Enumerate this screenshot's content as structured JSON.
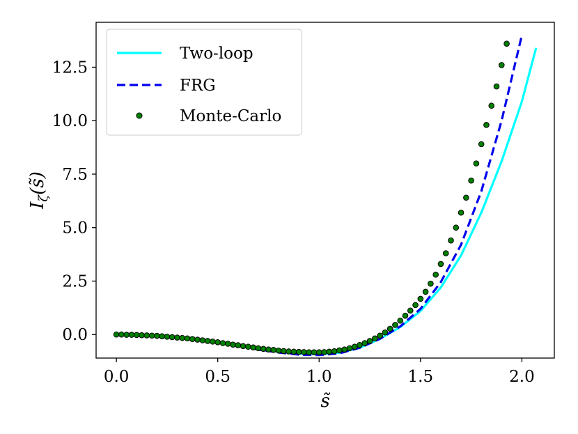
{
  "chart_data": {
    "type": "line",
    "xlabel": "s̃",
    "ylabel": "I",
    "ylabel_subscript": "ζ",
    "ylabel_arg": "(s̃)",
    "xlim": [
      -0.1,
      2.16
    ],
    "ylim": [
      -1.1,
      14.6
    ],
    "xticks": [
      0.0,
      0.5,
      1.0,
      1.5,
      2.0
    ],
    "xtick_labels": [
      "0.0",
      "0.5",
      "1.0",
      "1.5",
      "2.0"
    ],
    "yticks": [
      0.0,
      2.5,
      5.0,
      7.5,
      10.0,
      12.5
    ],
    "ytick_labels": [
      "0.0",
      "2.5",
      "5.0",
      "7.5",
      "10.0",
      "12.5"
    ],
    "grid": false,
    "legend_position": "top-left",
    "series": [
      {
        "name": "Two-loop",
        "style": "solid",
        "color": "#00ffff",
        "x": [
          0.0,
          0.1,
          0.2,
          0.3,
          0.4,
          0.5,
          0.6,
          0.7,
          0.8,
          0.9,
          1.0,
          1.1,
          1.2,
          1.3,
          1.4,
          1.5,
          1.6,
          1.7,
          1.8,
          1.9,
          2.0,
          2.07
        ],
        "y": [
          0.0,
          -0.01,
          -0.05,
          -0.12,
          -0.22,
          -0.34,
          -0.5,
          -0.66,
          -0.8,
          -0.9,
          -0.92,
          -0.85,
          -0.62,
          -0.2,
          0.35,
          1.1,
          2.2,
          3.7,
          5.7,
          8.1,
          10.9,
          13.4
        ]
      },
      {
        "name": "FRG",
        "style": "dashed",
        "color": "#0000ee",
        "x": [
          0.0,
          0.1,
          0.2,
          0.3,
          0.4,
          0.5,
          0.6,
          0.7,
          0.8,
          0.9,
          1.0,
          1.1,
          1.2,
          1.3,
          1.4,
          1.5,
          1.6,
          1.7,
          1.8,
          1.9,
          2.0
        ],
        "y": [
          0.0,
          -0.01,
          -0.05,
          -0.12,
          -0.22,
          -0.35,
          -0.52,
          -0.7,
          -0.84,
          -0.94,
          -0.96,
          -0.88,
          -0.62,
          -0.2,
          0.38,
          1.2,
          2.45,
          4.2,
          6.7,
          10.0,
          14.0
        ]
      },
      {
        "name": "Monte-Carlo",
        "style": "markers",
        "color": "#008000",
        "edge_color": "#000000",
        "x": [
          0.0,
          0.025,
          0.05,
          0.075,
          0.1,
          0.125,
          0.15,
          0.175,
          0.2,
          0.225,
          0.25,
          0.275,
          0.3,
          0.325,
          0.35,
          0.375,
          0.4,
          0.425,
          0.45,
          0.475,
          0.5,
          0.525,
          0.55,
          0.575,
          0.6,
          0.625,
          0.65,
          0.675,
          0.7,
          0.725,
          0.75,
          0.775,
          0.8,
          0.825,
          0.85,
          0.875,
          0.9,
          0.925,
          0.95,
          0.975,
          1.0,
          1.025,
          1.05,
          1.075,
          1.1,
          1.125,
          1.15,
          1.175,
          1.2,
          1.225,
          1.25,
          1.275,
          1.3,
          1.325,
          1.35,
          1.375,
          1.4,
          1.425,
          1.45,
          1.475,
          1.5,
          1.525,
          1.55,
          1.575,
          1.6,
          1.625,
          1.65,
          1.675,
          1.7,
          1.725,
          1.75,
          1.775,
          1.8,
          1.825,
          1.85,
          1.875,
          1.9,
          1.925
        ],
        "y": [
          0.0,
          0.0,
          -0.01,
          -0.01,
          -0.02,
          -0.03,
          -0.04,
          -0.05,
          -0.06,
          -0.08,
          -0.1,
          -0.12,
          -0.14,
          -0.16,
          -0.18,
          -0.21,
          -0.24,
          -0.27,
          -0.3,
          -0.33,
          -0.36,
          -0.4,
          -0.43,
          -0.47,
          -0.5,
          -0.54,
          -0.57,
          -0.6,
          -0.64,
          -0.67,
          -0.7,
          -0.72,
          -0.75,
          -0.77,
          -0.79,
          -0.8,
          -0.81,
          -0.82,
          -0.83,
          -0.83,
          -0.83,
          -0.82,
          -0.8,
          -0.78,
          -0.74,
          -0.7,
          -0.64,
          -0.57,
          -0.49,
          -0.4,
          -0.3,
          -0.18,
          -0.05,
          0.1,
          0.27,
          0.45,
          0.65,
          0.88,
          1.12,
          1.38,
          1.67,
          2.0,
          2.38,
          2.8,
          3.3,
          3.8,
          4.4,
          5.0,
          5.7,
          6.4,
          7.2,
          8.0,
          8.9,
          9.8,
          10.7,
          11.6,
          12.6,
          13.6
        ]
      }
    ]
  }
}
